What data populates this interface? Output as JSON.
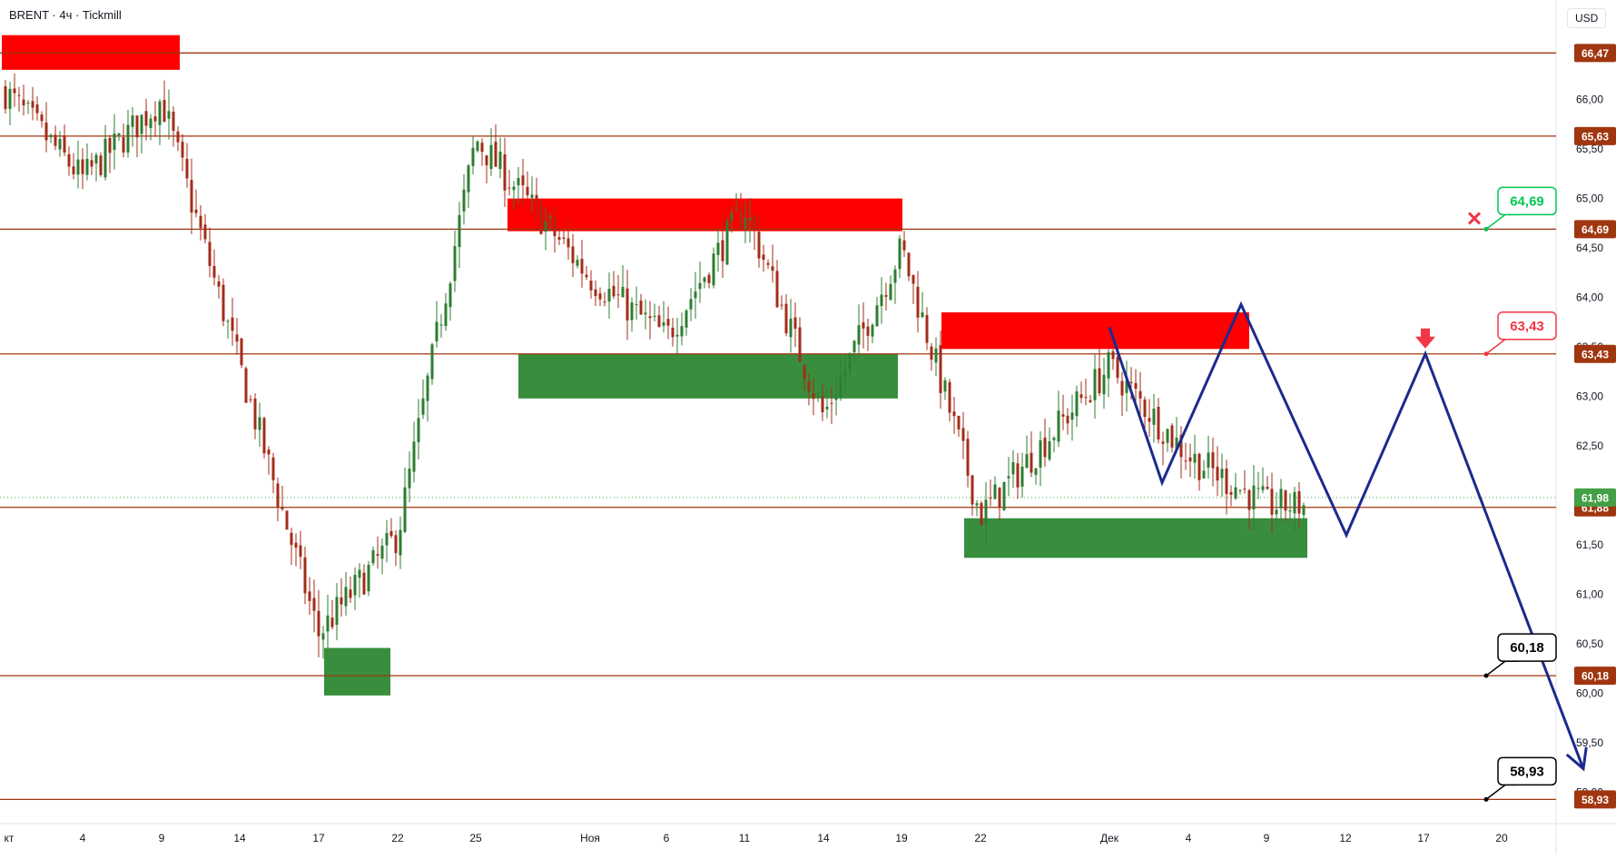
{
  "header": {
    "title": "BRENT · 4ч · Tickmill"
  },
  "currency": "USD",
  "colors": {
    "up": "#2e7d32",
    "down": "#a32c1a",
    "level": "#a0360f",
    "resistance": "#ff0000",
    "support": "#388e3c",
    "forecast": "#1a2b8c",
    "current": "#43a047",
    "label_green": "#00c853",
    "label_red": "#f23645",
    "marker_red": "#f23645"
  },
  "chart_data": {
    "type": "candlestick",
    "symbol": "BRENT",
    "timeframe": "4ч",
    "broker": "Tickmill",
    "ylim": [
      58.75,
      66.95
    ],
    "y_ticks": [
      "66,00",
      "65,50",
      "65,00",
      "64,50",
      "64,00",
      "63,50",
      "63,00",
      "62,50",
      "62,00",
      "61,50",
      "61,00",
      "60,50",
      "60,00",
      "59,50",
      "59,00"
    ],
    "x_ticks": [
      "кт",
      "4",
      "9",
      "14",
      "17",
      "22",
      "25",
      "Ноя",
      "6",
      "11",
      "14",
      "19",
      "22",
      "Дек",
      "4",
      "9",
      "12",
      "17",
      "20"
    ],
    "levels": [
      {
        "price": 66.47,
        "label": "66,47"
      },
      {
        "price": 65.63,
        "label": "65,63"
      },
      {
        "price": 64.69,
        "label": "64,69"
      },
      {
        "price": 63.43,
        "label": "63,43"
      },
      {
        "price": 61.88,
        "label": "61,88"
      },
      {
        "price": 60.18,
        "label": "60,18"
      },
      {
        "price": 58.93,
        "label": "58,93"
      }
    ],
    "current_price": {
      "price": 61.98,
      "label": "61,98"
    },
    "resistance_zones": [
      {
        "from_tick": "кт",
        "to_tick": "9",
        "low": 66.3,
        "high": 66.65
      },
      {
        "from_tick": "25",
        "to_tick": "19",
        "low": 64.67,
        "high": 65.0
      },
      {
        "from_tick": "19",
        "to_tick": "9",
        "low": 63.48,
        "high": 63.85
      }
    ],
    "support_zones": [
      {
        "from_tick": "17",
        "to_tick": "22",
        "low": 59.98,
        "high": 60.46
      },
      {
        "from_tick": "25",
        "to_tick": "19",
        "low": 62.98,
        "high": 63.43
      },
      {
        "from_tick": "19",
        "to_tick": "9",
        "low": 61.37,
        "high": 61.77
      }
    ],
    "forecast_path": [
      {
        "date": "Дек 1",
        "price": 63.7
      },
      {
        "date": "Дек 3",
        "price": 62.13
      },
      {
        "date": "Дек 6",
        "price": 63.93
      },
      {
        "date": "Дек 10",
        "price": 61.6
      },
      {
        "date": "Дек 13",
        "price": 63.43
      },
      {
        "date": "Дек 19",
        "price": 59.24
      }
    ],
    "callouts": [
      {
        "price": 64.69,
        "label": "64,69",
        "style": "green",
        "marker": "cross"
      },
      {
        "price": 63.43,
        "label": "63,43",
        "style": "red",
        "marker": "down-arrow"
      },
      {
        "price": 60.18,
        "label": "60,18",
        "style": "black"
      },
      {
        "price": 58.93,
        "label": "58,93",
        "style": "black"
      }
    ],
    "path_key": [
      {
        "tick": "кт",
        "price": 66.1
      },
      {
        "tick": "4",
        "price": 65.2
      },
      {
        "tick": "9",
        "price": 66.0
      },
      {
        "tick": "14",
        "price": 63.3
      },
      {
        "tick": "17",
        "price": 60.6
      },
      {
        "tick": "22",
        "price": 61.6
      },
      {
        "tick": "25",
        "price": 65.6
      },
      {
        "tick": "Ноя",
        "price": 64.2
      },
      {
        "tick": "6",
        "price": 63.6
      },
      {
        "tick": "11",
        "price": 64.9
      },
      {
        "tick": "14",
        "price": 62.8
      },
      {
        "tick": "19",
        "price": 64.5
      },
      {
        "tick": "22",
        "price": 61.8
      },
      {
        "tick": "Дек",
        "price": 63.3
      },
      {
        "tick": "4",
        "price": 62.4
      },
      {
        "tick": "9",
        "price": 61.9
      }
    ]
  }
}
